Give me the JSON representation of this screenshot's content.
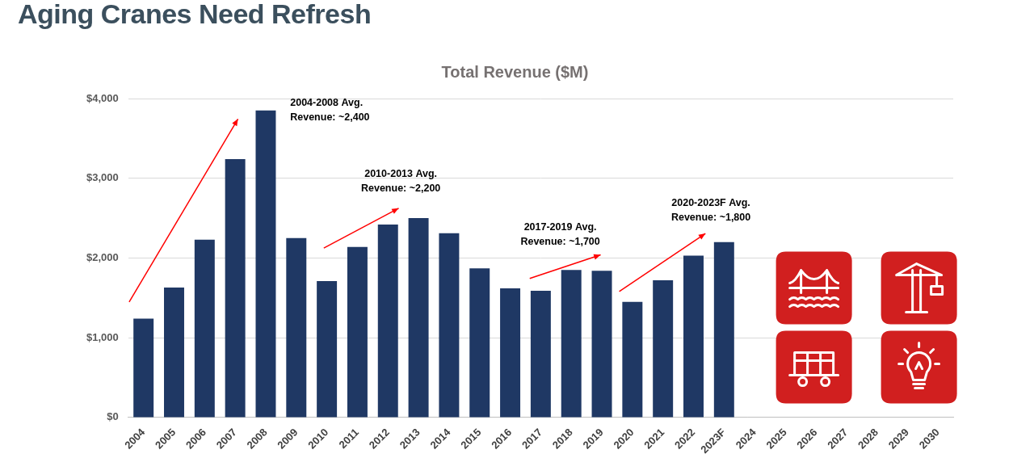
{
  "page_title": "Aging Cranes Need Refresh",
  "chart_data": {
    "type": "bar",
    "title": "Total Revenue ($M)",
    "categories": [
      "2004",
      "2005",
      "2006",
      "2007",
      "2008",
      "2009",
      "2010",
      "2011",
      "2012",
      "2013",
      "2014",
      "2015",
      "2016",
      "2017",
      "2018",
      "2019",
      "2020",
      "2021",
      "2022",
      "2023F",
      "2024",
      "2025",
      "2026",
      "2027",
      "2028",
      "2029",
      "2030"
    ],
    "values": [
      1240,
      1630,
      2230,
      3240,
      3850,
      2250,
      1710,
      2140,
      2420,
      2500,
      2310,
      1870,
      1620,
      1590,
      1850,
      1840,
      1450,
      1720,
      2030,
      2200,
      null,
      null,
      null,
      null,
      null,
      null,
      null
    ],
    "color": "#1f3864",
    "ylim": [
      0,
      4000
    ],
    "yticks": [
      {
        "value": 0,
        "label": "$0"
      },
      {
        "value": 1000,
        "label": "$1,000"
      },
      {
        "value": 2000,
        "label": "$2,000"
      },
      {
        "value": 3000,
        "label": "$3,000"
      },
      {
        "value": 4000,
        "label": "$4,000"
      }
    ],
    "grid": true,
    "annotations": [
      {
        "text": [
          "2004-2008 Avg.",
          "Revenue: ~2,400"
        ]
      },
      {
        "text": [
          "2010-2013 Avg.",
          "Revenue: ~2,200"
        ]
      },
      {
        "text": [
          "2017-2019 Avg.",
          "Revenue: ~1,700"
        ]
      },
      {
        "text": [
          "2020-2023F Avg.",
          "Revenue: ~1,800"
        ]
      }
    ]
  }
}
